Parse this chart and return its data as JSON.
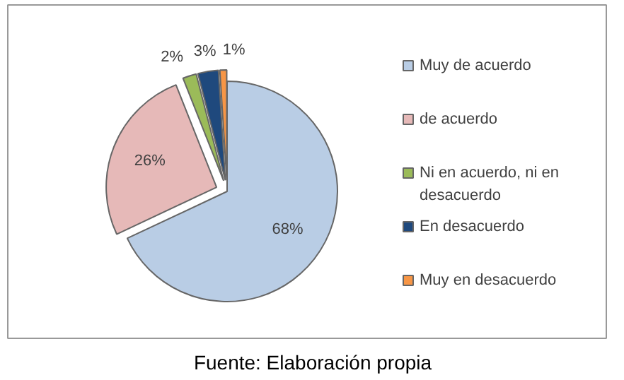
{
  "chart_data": {
    "type": "pie",
    "categories": [
      "Muy de acuerdo",
      "de acuerdo",
      "Ni en acuerdo, ni en desacuerdo",
      "En desacuerdo",
      "Muy en desacuerdo"
    ],
    "values": [
      68,
      26,
      2,
      3,
      1
    ],
    "value_labels": [
      "68%",
      "26%",
      "2%",
      "3%",
      "1%"
    ],
    "colors": [
      "#b9cde5",
      "#e6b9b8",
      "#9bbb59",
      "#1f497d",
      "#f79646"
    ],
    "legend": "right",
    "annotations": [
      "Fuente: Elaboración propia"
    ]
  }
}
